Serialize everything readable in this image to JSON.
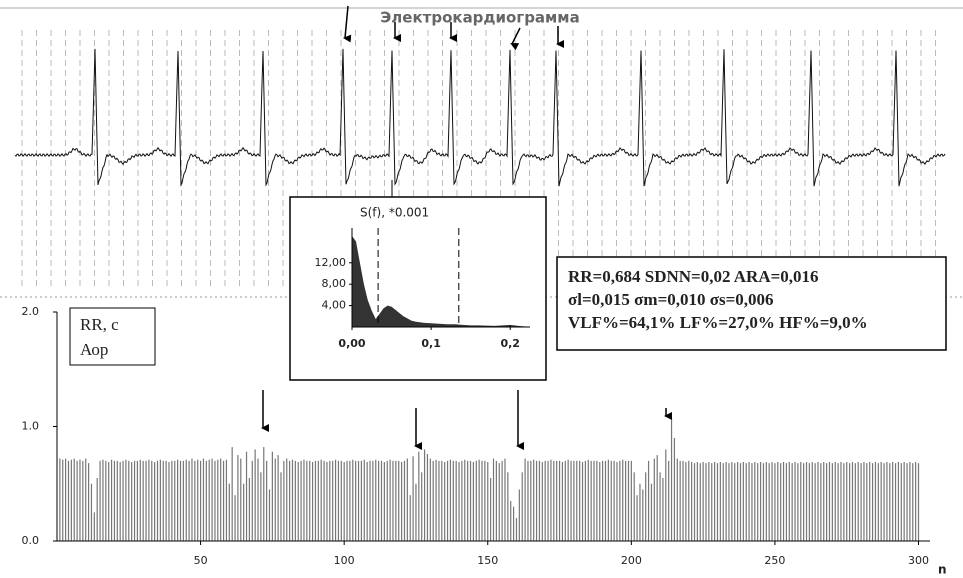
{
  "chart_data": [
    {
      "type": "ecg",
      "title": "Электрокардиограмма"
    },
    {
      "type": "bar",
      "annotation": "Аор",
      "xlabel": "n",
      "stats": [
        "RR=0,684 SDNN=0,02 ARA=0,016",
        "σl=0,015 σm=0,010 σs=0,006",
        "VLF%=64,1% LF%=27,0% HF%=9,0%"
      ],
      "xlim": [
        0,
        304
      ],
      "xticks": [
        50,
        100,
        150,
        200,
        250,
        300
      ],
      "ylim": [
        0,
        2
      ],
      "yticks": [
        {
          "value": 0,
          "label": "0.0"
        },
        {
          "value": 1,
          "label": "1.0"
        },
        {
          "value": 2,
          "label": "2.0"
        }
      ],
      "x": [
        1,
        2,
        3,
        4,
        5,
        6,
        7,
        8,
        9,
        10,
        11,
        12,
        13,
        14,
        15,
        16,
        17,
        18,
        19,
        20,
        21,
        22,
        23,
        24,
        25,
        26,
        27,
        28,
        29,
        30,
        31,
        32,
        33,
        34,
        35,
        36,
        37,
        38,
        39,
        40,
        41,
        42,
        43,
        44,
        45,
        46,
        47,
        48,
        49,
        50,
        51,
        52,
        53,
        54,
        55,
        56,
        57,
        58,
        59,
        60,
        61,
        62,
        63,
        64,
        65,
        66,
        67,
        68,
        69,
        70,
        71,
        72,
        73,
        74,
        75,
        76,
        77,
        78,
        79,
        80,
        81,
        82,
        83,
        84,
        85,
        86,
        87,
        88,
        89,
        90,
        91,
        92,
        93,
        94,
        95,
        96,
        97,
        98,
        99,
        100,
        101,
        102,
        103,
        104,
        105,
        106,
        107,
        108,
        109,
        110,
        111,
        112,
        113,
        114,
        115,
        116,
        117,
        118,
        119,
        120,
        121,
        122,
        123,
        124,
        125,
        126,
        127,
        128,
        129,
        130,
        131,
        132,
        133,
        134,
        135,
        136,
        137,
        138,
        139,
        140,
        141,
        142,
        143,
        144,
        145,
        146,
        147,
        148,
        149,
        150,
        151,
        152,
        153,
        154,
        155,
        156,
        157,
        158,
        159,
        160,
        161,
        162,
        163,
        164,
        165,
        166,
        167,
        168,
        169,
        170,
        171,
        172,
        173,
        174,
        175,
        176,
        177,
        178,
        179,
        180,
        181,
        182,
        183,
        184,
        185,
        186,
        187,
        188,
        189,
        190,
        191,
        192,
        193,
        194,
        195,
        196,
        197,
        198,
        199,
        200,
        201,
        202,
        203,
        204,
        205,
        206,
        207,
        208,
        209,
        210,
        211,
        212,
        213,
        214,
        215,
        216,
        217,
        218,
        219,
        220,
        221,
        222,
        223,
        224,
        225,
        226,
        227,
        228,
        229,
        230,
        231,
        232,
        233,
        234,
        235,
        236,
        237,
        238,
        239,
        240,
        241,
        242,
        243,
        244,
        245,
        246,
        247,
        248,
        249,
        250,
        251,
        252,
        253,
        254,
        255,
        256,
        257,
        258,
        259,
        260,
        261,
        262,
        263,
        264,
        265,
        266,
        267,
        268,
        269,
        270,
        271,
        272,
        273,
        274,
        275,
        276,
        277,
        278,
        279,
        280,
        281,
        282,
        283,
        284,
        285,
        286,
        287,
        288,
        289,
        290,
        291,
        292,
        293,
        294,
        295,
        296,
        297,
        298,
        299,
        300
      ],
      "series": [
        {
          "name": "RR, c",
          "color": "#777777",
          "values": [
            0.72,
            0.71,
            0.72,
            0.7,
            0.71,
            0.72,
            0.7,
            0.71,
            0.7,
            0.72,
            0.68,
            0.5,
            0.25,
            0.55,
            0.7,
            0.71,
            0.7,
            0.69,
            0.71,
            0.7,
            0.7,
            0.69,
            0.7,
            0.71,
            0.7,
            0.69,
            0.7,
            0.7,
            0.71,
            0.7,
            0.7,
            0.71,
            0.7,
            0.69,
            0.7,
            0.71,
            0.7,
            0.7,
            0.69,
            0.7,
            0.7,
            0.71,
            0.7,
            0.7,
            0.71,
            0.7,
            0.72,
            0.7,
            0.71,
            0.7,
            0.72,
            0.7,
            0.71,
            0.72,
            0.7,
            0.71,
            0.72,
            0.7,
            0.71,
            0.5,
            0.82,
            0.4,
            0.75,
            0.72,
            0.5,
            0.78,
            0.55,
            0.7,
            0.8,
            0.72,
            0.6,
            0.82,
            0.7,
            0.45,
            0.78,
            0.72,
            0.75,
            0.6,
            0.7,
            0.72,
            0.7,
            0.71,
            0.7,
            0.69,
            0.7,
            0.71,
            0.7,
            0.7,
            0.69,
            0.7,
            0.7,
            0.71,
            0.7,
            0.69,
            0.7,
            0.7,
            0.71,
            0.7,
            0.7,
            0.69,
            0.7,
            0.7,
            0.71,
            0.7,
            0.7,
            0.7,
            0.71,
            0.69,
            0.7,
            0.7,
            0.71,
            0.7,
            0.7,
            0.69,
            0.7,
            0.71,
            0.7,
            0.7,
            0.7,
            0.69,
            0.7,
            0.72,
            0.4,
            0.74,
            0.5,
            0.78,
            0.6,
            0.8,
            0.76,
            0.72,
            0.7,
            0.71,
            0.7,
            0.7,
            0.69,
            0.7,
            0.71,
            0.7,
            0.7,
            0.69,
            0.7,
            0.71,
            0.7,
            0.7,
            0.69,
            0.7,
            0.71,
            0.7,
            0.7,
            0.69,
            0.55,
            0.72,
            0.7,
            0.68,
            0.7,
            0.72,
            0.6,
            0.35,
            0.3,
            0.2,
            0.45,
            0.6,
            0.72,
            0.7,
            0.7,
            0.71,
            0.7,
            0.7,
            0.69,
            0.7,
            0.7,
            0.71,
            0.7,
            0.7,
            0.7,
            0.69,
            0.7,
            0.71,
            0.7,
            0.7,
            0.7,
            0.7,
            0.69,
            0.7,
            0.71,
            0.7,
            0.7,
            0.7,
            0.69,
            0.7,
            0.7,
            0.71,
            0.7,
            0.7,
            0.69,
            0.7,
            0.71,
            0.7,
            0.7,
            0.7,
            0.6,
            0.4,
            0.5,
            0.45,
            0.6,
            0.7,
            0.5,
            0.72,
            0.75,
            0.6,
            0.55,
            0.8,
            0.7,
            1.07,
            0.9,
            0.72,
            0.7,
            0.7,
            0.69,
            0.7,
            0.69,
            0.68,
            0.69,
            0.68,
            0.69,
            0.68,
            0.69,
            0.68,
            0.69,
            0.68,
            0.69,
            0.68,
            0.69,
            0.68,
            0.69,
            0.68,
            0.69,
            0.68,
            0.69,
            0.68,
            0.69,
            0.68,
            0.69,
            0.68,
            0.69,
            0.68,
            0.69,
            0.68,
            0.69,
            0.68,
            0.69,
            0.68,
            0.69,
            0.68,
            0.69,
            0.68,
            0.69,
            0.68,
            0.69,
            0.68,
            0.69,
            0.68,
            0.69,
            0.68,
            0.69,
            0.68,
            0.69,
            0.68,
            0.69,
            0.68,
            0.69,
            0.68,
            0.69,
            0.68,
            0.69,
            0.68,
            0.69,
            0.68,
            0.69,
            0.68,
            0.69,
            0.68,
            0.69,
            0.68,
            0.69,
            0.68,
            0.69,
            0.68,
            0.69,
            0.68,
            0.69,
            0.68,
            0.69,
            0.68,
            0.69,
            0.68,
            0.69,
            0.68,
            0.69,
            0.68
          ]
        }
      ]
    },
    {
      "type": "area",
      "title": "S(f), *0.001",
      "color": "#333333",
      "x": [
        0,
        0.005,
        0.01,
        0.015,
        0.02,
        0.025,
        0.03,
        0.035,
        0.04,
        0.045,
        0.05,
        0.055,
        0.06,
        0.065,
        0.07,
        0.075,
        0.08,
        0.09,
        0.1,
        0.11,
        0.12,
        0.13,
        0.14,
        0.15,
        0.16,
        0.18,
        0.2,
        0.21,
        0.22
      ],
      "values": [
        17,
        16,
        12,
        8,
        5,
        3,
        1.5,
        2.5,
        3.5,
        4,
        3.8,
        3.2,
        2.6,
        2,
        1.6,
        1.2,
        1,
        0.8,
        0.7,
        0.6,
        0.5,
        0.5,
        0.4,
        0.3,
        0.3,
        0.2,
        0.4,
        0.2,
        0.1
      ],
      "band_lines": [
        0.033,
        0.135
      ],
      "xlim": [
        0,
        0.225
      ],
      "xticks": [
        {
          "value": 0,
          "label": "0,00"
        },
        {
          "value": 0.1,
          "label": "0,1"
        },
        {
          "value": 0.2,
          "label": "0,2"
        }
      ],
      "ylim": [
        0,
        18.5
      ],
      "yticks": [
        {
          "value": 4,
          "label": "4,00"
        },
        {
          "value": 8,
          "label": "8,00"
        },
        {
          "value": 12,
          "label": "12,00"
        }
      ]
    }
  ]
}
